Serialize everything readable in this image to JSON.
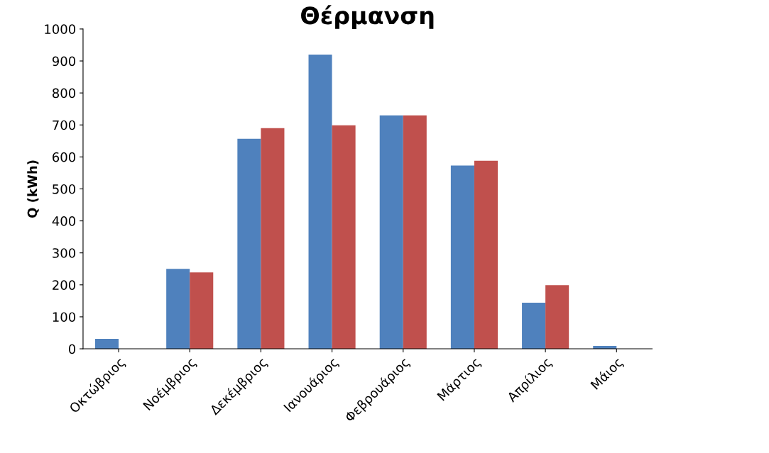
{
  "chart_data": {
    "type": "bar",
    "title": "Θέρμανση",
    "ylabel": "Q (kWh)",
    "categories": [
      "Οκτώβριος",
      "Νοέμβριος",
      "Δεκέμβριος",
      "Ιανουάριος",
      "Φεβρουάριος",
      "Μάρτιος",
      "Απρίλιος",
      "Μάιος"
    ],
    "series": [
      {
        "color": "#4f81bd",
        "values": [
          31,
          250,
          657,
          920,
          730,
          573,
          144,
          9
        ]
      },
      {
        "color": "#c0504d",
        "values": [
          0,
          239,
          690,
          699,
          730,
          588,
          199,
          0
        ]
      }
    ],
    "ylim": [
      0,
      1000
    ],
    "yticks": [
      0,
      100,
      200,
      300,
      400,
      500,
      600,
      700,
      800,
      900,
      1000
    ],
    "grid": false,
    "legend": false
  }
}
